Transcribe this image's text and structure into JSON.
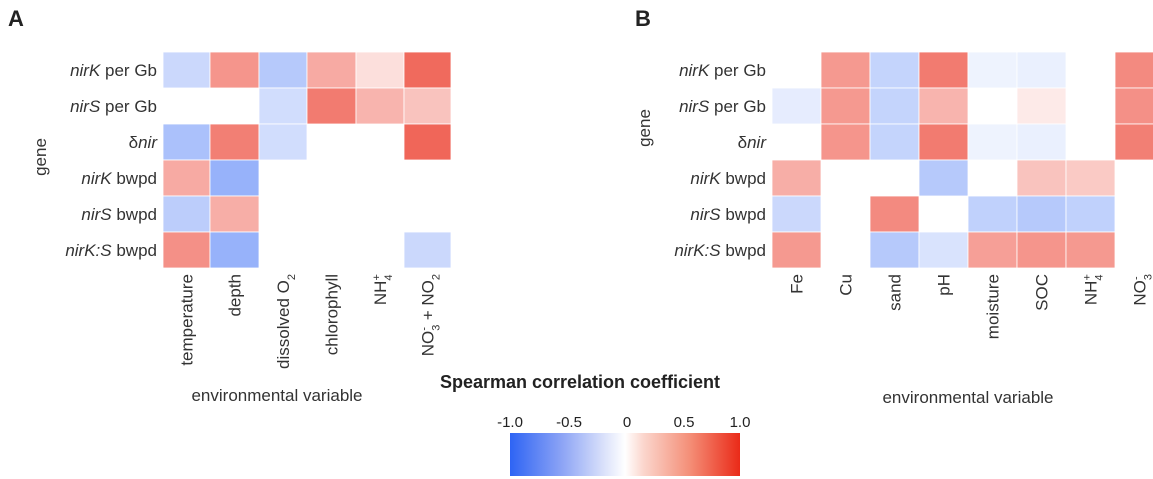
{
  "chart_data": [
    {
      "type": "heatmap",
      "panel": "A",
      "ylabel": "gene",
      "xlabel": "environmental variable",
      "rows": [
        {
          "pre": "",
          "it": "nirK",
          "post": " per Gb"
        },
        {
          "pre": "",
          "it": "nirS",
          "post": " per Gb"
        },
        {
          "pre": "δ",
          "it": "nir",
          "post": ""
        },
        {
          "pre": "",
          "it": "nirK",
          "post": " bwpd"
        },
        {
          "pre": "",
          "it": "nirS",
          "post": " bwpd"
        },
        {
          "pre": "",
          "it": "nirK:S",
          "post": " bwpd"
        }
      ],
      "columns": [
        {
          "base": "temperature"
        },
        {
          "base": "depth"
        },
        {
          "base": "dissolved O",
          "sub": "2"
        },
        {
          "base": "chlorophyll"
        },
        {
          "base": "NH",
          "sub": "4",
          "sup": "+"
        },
        {
          "base": "NO",
          "sub": "3",
          "sup": "-",
          "tail": " + NO",
          "sub2": "2"
        }
      ],
      "values": [
        [
          -0.25,
          0.5,
          -0.35,
          0.4,
          0.15,
          0.7
        ],
        [
          null,
          null,
          -0.22,
          0.62,
          0.35,
          0.28
        ],
        [
          -0.4,
          0.6,
          -0.22,
          null,
          null,
          0.72
        ],
        [
          0.4,
          -0.5,
          null,
          null,
          null,
          null
        ],
        [
          -0.32,
          0.38,
          null,
          null,
          null,
          null
        ],
        [
          0.52,
          -0.5,
          null,
          null,
          null,
          -0.25
        ]
      ]
    },
    {
      "type": "heatmap",
      "panel": "B",
      "ylabel": "gene",
      "xlabel": "environmental variable",
      "rows": [
        {
          "pre": "",
          "it": "nirK",
          "post": " per Gb"
        },
        {
          "pre": "",
          "it": "nirS",
          "post": " per Gb"
        },
        {
          "pre": "δ",
          "it": "nir",
          "post": ""
        },
        {
          "pre": "",
          "it": "nirK",
          "post": " bwpd"
        },
        {
          "pre": "",
          "it": "nirS",
          "post": " bwpd"
        },
        {
          "pre": "",
          "it": "nirK:S",
          "post": " bwpd"
        }
      ],
      "columns": [
        {
          "base": "Fe"
        },
        {
          "base": "Cu"
        },
        {
          "base": "sand"
        },
        {
          "base": "pH"
        },
        {
          "base": "moisture"
        },
        {
          "base": "SOC"
        },
        {
          "base": "NH",
          "sub": "4",
          "sup": "+"
        },
        {
          "base": "NO",
          "sub": "3",
          "sup": "-"
        }
      ],
      "values": [
        [
          null,
          0.48,
          -0.28,
          0.62,
          -0.08,
          -0.1,
          null,
          0.55
        ],
        [
          -0.12,
          0.48,
          -0.28,
          0.35,
          null,
          0.1,
          null,
          0.52
        ],
        [
          null,
          0.5,
          -0.28,
          0.62,
          -0.08,
          -0.1,
          null,
          0.6
        ],
        [
          0.38,
          null,
          null,
          -0.35,
          null,
          0.28,
          0.25,
          null
        ],
        [
          -0.25,
          null,
          0.55,
          null,
          -0.3,
          -0.35,
          -0.3,
          null
        ],
        [
          0.48,
          null,
          -0.35,
          -0.18,
          0.45,
          0.5,
          0.48,
          null
        ]
      ]
    }
  ],
  "colorbar": {
    "title": "Spearman correlation coefficient",
    "ticks": [
      "-1.0",
      "-0.5",
      "0",
      "0.5",
      "1.0"
    ],
    "tick_values": [
      -1.0,
      -0.5,
      0,
      0.5,
      1.0
    ],
    "range": [
      -1.0,
      1.0
    ],
    "colors": {
      "negative": "#2e64f4",
      "zero": "#ffffff",
      "positive": "#ea2a18"
    }
  }
}
